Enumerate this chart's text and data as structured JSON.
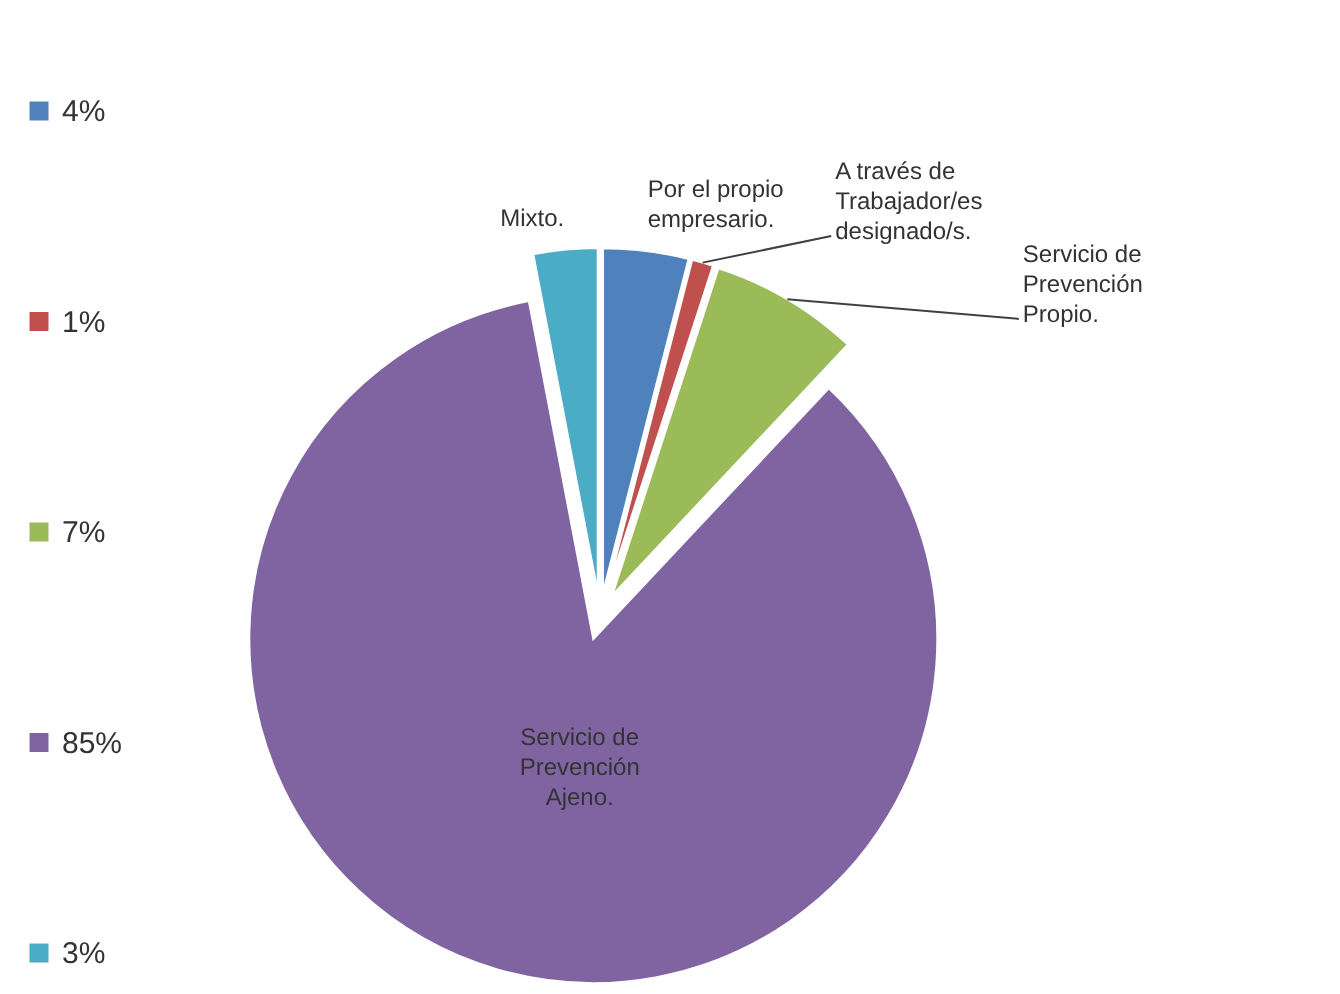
{
  "chart_data": {
    "type": "pie",
    "categories": [
      "4%",
      "1%",
      "7%",
      "85%",
      "3%"
    ],
    "values": [
      4,
      1,
      7,
      85,
      3
    ],
    "colors": [
      "#4f81bd",
      "#c0504d",
      "#9bbb59",
      "#8064a2",
      "#4bacc6"
    ],
    "annotations": [
      {
        "text": "Por el propio empresario.",
        "x": "4%"
      },
      {
        "text": "A través de Trabajador/es designado/s.",
        "x": "1%"
      },
      {
        "text": "Servicio de Prevención Propio.",
        "x": "7%"
      },
      {
        "text": "Servicio de Prevención Ajeno.",
        "x": "85%"
      },
      {
        "text": "Mixto.",
        "x": "3%"
      }
    ],
    "legend": "left"
  }
}
